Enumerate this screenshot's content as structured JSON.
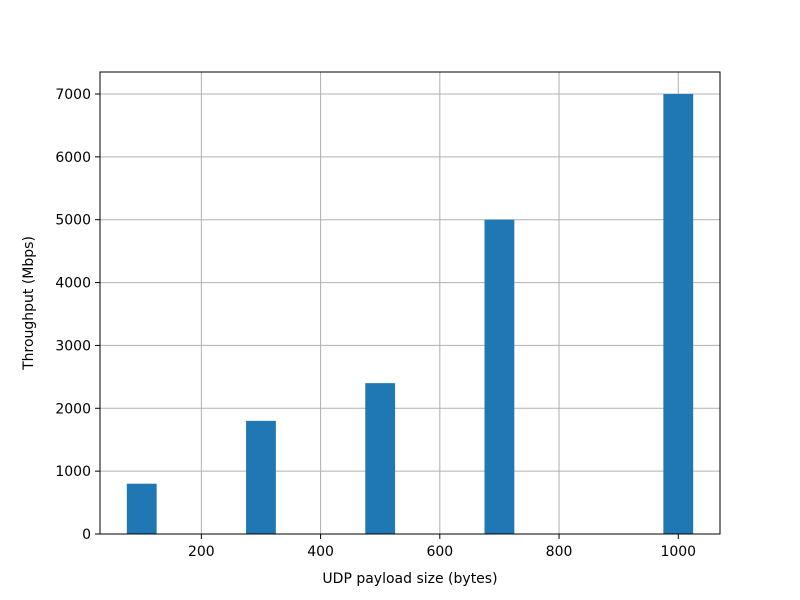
{
  "chart_data": {
    "type": "bar",
    "title": "",
    "xlabel": "UDP payload size (bytes)",
    "ylabel": "Throughput (Mbps)",
    "x": [
      100,
      300,
      500,
      700,
      1000
    ],
    "values": [
      800,
      1800,
      2400,
      5000,
      7000
    ],
    "bar_width": 50,
    "xlim": [
      30,
      1070
    ],
    "ylim": [
      0,
      7350
    ],
    "xticks": [
      200,
      400,
      600,
      800,
      1000
    ],
    "yticks": [
      0,
      1000,
      2000,
      3000,
      4000,
      5000,
      6000,
      7000
    ],
    "xtick_labels": [
      "200",
      "400",
      "600",
      "800",
      "1000"
    ],
    "ytick_labels": [
      "0",
      "1000",
      "2000",
      "3000",
      "4000",
      "5000",
      "6000",
      "7000"
    ],
    "grid": true,
    "bar_color": "#1f77b4"
  }
}
